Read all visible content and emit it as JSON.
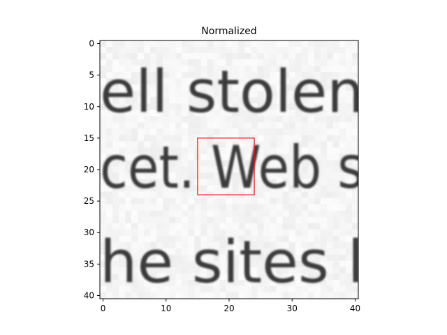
{
  "chart_data": {
    "type": "heatmap",
    "title": "Normalized",
    "xlabel": "",
    "ylabel": "",
    "grid": false,
    "colormap": "gray",
    "x_range": [
      -0.5,
      40.5
    ],
    "y_range": [
      -0.5,
      40.5
    ],
    "y_inverted": true,
    "x_ticks": [
      0,
      10,
      20,
      30,
      40
    ],
    "y_ticks": [
      0,
      5,
      10,
      15,
      20,
      25,
      30,
      35,
      40
    ],
    "image_text_rows": [
      {
        "text": "ell stolen",
        "row_center": 8,
        "start_col": 0
      },
      {
        "text": "cet. Web s",
        "row_center": 20,
        "start_col": 0
      },
      {
        "text": "he sites l",
        "row_center": 35,
        "start_col": 0
      }
    ],
    "highlight_box": {
      "x0": 15,
      "y0": 15,
      "x1": 24,
      "y1": 24,
      "color": "#e31a1c"
    }
  }
}
